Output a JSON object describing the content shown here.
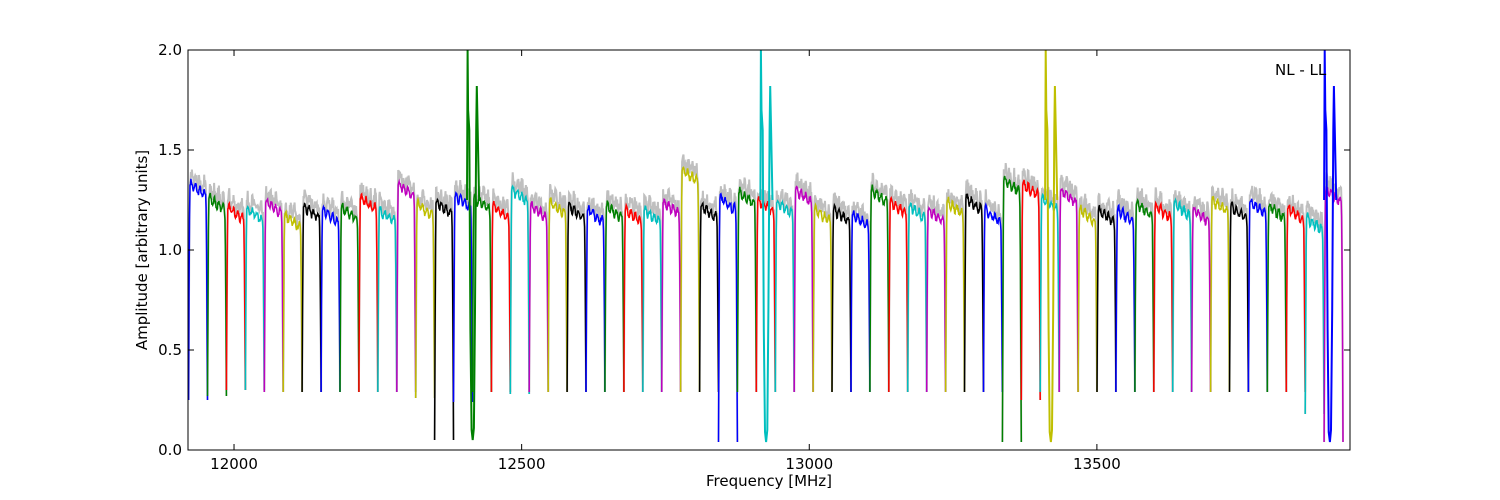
{
  "chart_data": {
    "type": "line",
    "title": "",
    "xlabel": "Frequency [MHz]",
    "ylabel": "Amplitude [arbitrary units]",
    "xlim": [
      11920,
      13940
    ],
    "ylim": [
      0.0,
      2.0
    ],
    "x_ticks": [
      12000,
      12500,
      13000,
      13500
    ],
    "y_ticks": [
      0.0,
      0.5,
      1.0,
      1.5,
      2.0
    ],
    "x_tick_labels": [
      "12000",
      "12500",
      "13000",
      "13500"
    ],
    "y_tick_labels": [
      "0.0",
      "0.5",
      "1.0",
      "1.5",
      "2.0"
    ],
    "grid": false,
    "annotation": "NL - LL",
    "annotation_position": "top-right",
    "series_colors": [
      "#0000ff",
      "#008000",
      "#ff0000",
      "#00bfbf",
      "#bf00bf",
      "#bfbf00",
      "#000000"
    ],
    "background_trace_color": "#bfbfbf",
    "channel_start_mhz": 11921,
    "channel_width_mhz": 32.9,
    "channel_count": 61,
    "channel_peak_levels": [
      1.33,
      1.26,
      1.21,
      1.21,
      1.24,
      1.17,
      1.22,
      1.2,
      1.21,
      1.26,
      1.2,
      1.33,
      1.23,
      1.24,
      1.27,
      1.26,
      1.22,
      1.3,
      1.22,
      1.24,
      1.22,
      1.2,
      1.22,
      1.2,
      1.2,
      1.24,
      1.4,
      1.22,
      1.26,
      1.29,
      1.25,
      1.24,
      1.3,
      1.2,
      1.2,
      1.18,
      1.3,
      1.24,
      1.22,
      1.2,
      1.24,
      1.26,
      1.2,
      1.35,
      1.33,
      1.26,
      1.3,
      1.2,
      1.2,
      1.2,
      1.23,
      1.22,
      1.23,
      1.2,
      1.25,
      1.22,
      1.24,
      1.22,
      1.21,
      1.16,
      1.3
    ],
    "channel_min_levels": [
      0.25,
      0.27,
      0.3,
      0.3,
      0.29,
      0.29,
      0.29,
      0.29,
      0.29,
      0.29,
      0.29,
      0.29,
      0.26,
      0.05,
      0.24,
      0.29,
      0.29,
      0.28,
      0.29,
      0.29,
      0.29,
      0.29,
      0.29,
      0.29,
      0.29,
      0.29,
      0.29,
      0.29,
      0.04,
      0.29,
      0.29,
      0.29,
      0.29,
      0.29,
      0.29,
      0.29,
      0.29,
      0.29,
      0.29,
      0.29,
      0.29,
      0.29,
      0.29,
      0.04,
      0.25,
      0.29,
      0.29,
      0.29,
      0.29,
      0.29,
      0.29,
      0.29,
      0.29,
      0.29,
      0.29,
      0.29,
      0.29,
      0.29,
      0.29,
      0.18,
      0.04
    ],
    "spikes": [
      {
        "x": 12415,
        "y_max": 2.0,
        "y_min": 0.05,
        "color": "#008000"
      },
      {
        "x": 12925,
        "y_max": 2.0,
        "y_min": 0.04,
        "color": "#00bfbf"
      },
      {
        "x": 13420,
        "y_max": 2.0,
        "y_min": 0.04,
        "color": "#bfbf00"
      },
      {
        "x": 13905,
        "y_max": 2.0,
        "y_min": 0.04,
        "color": "#0000ff"
      }
    ]
  }
}
